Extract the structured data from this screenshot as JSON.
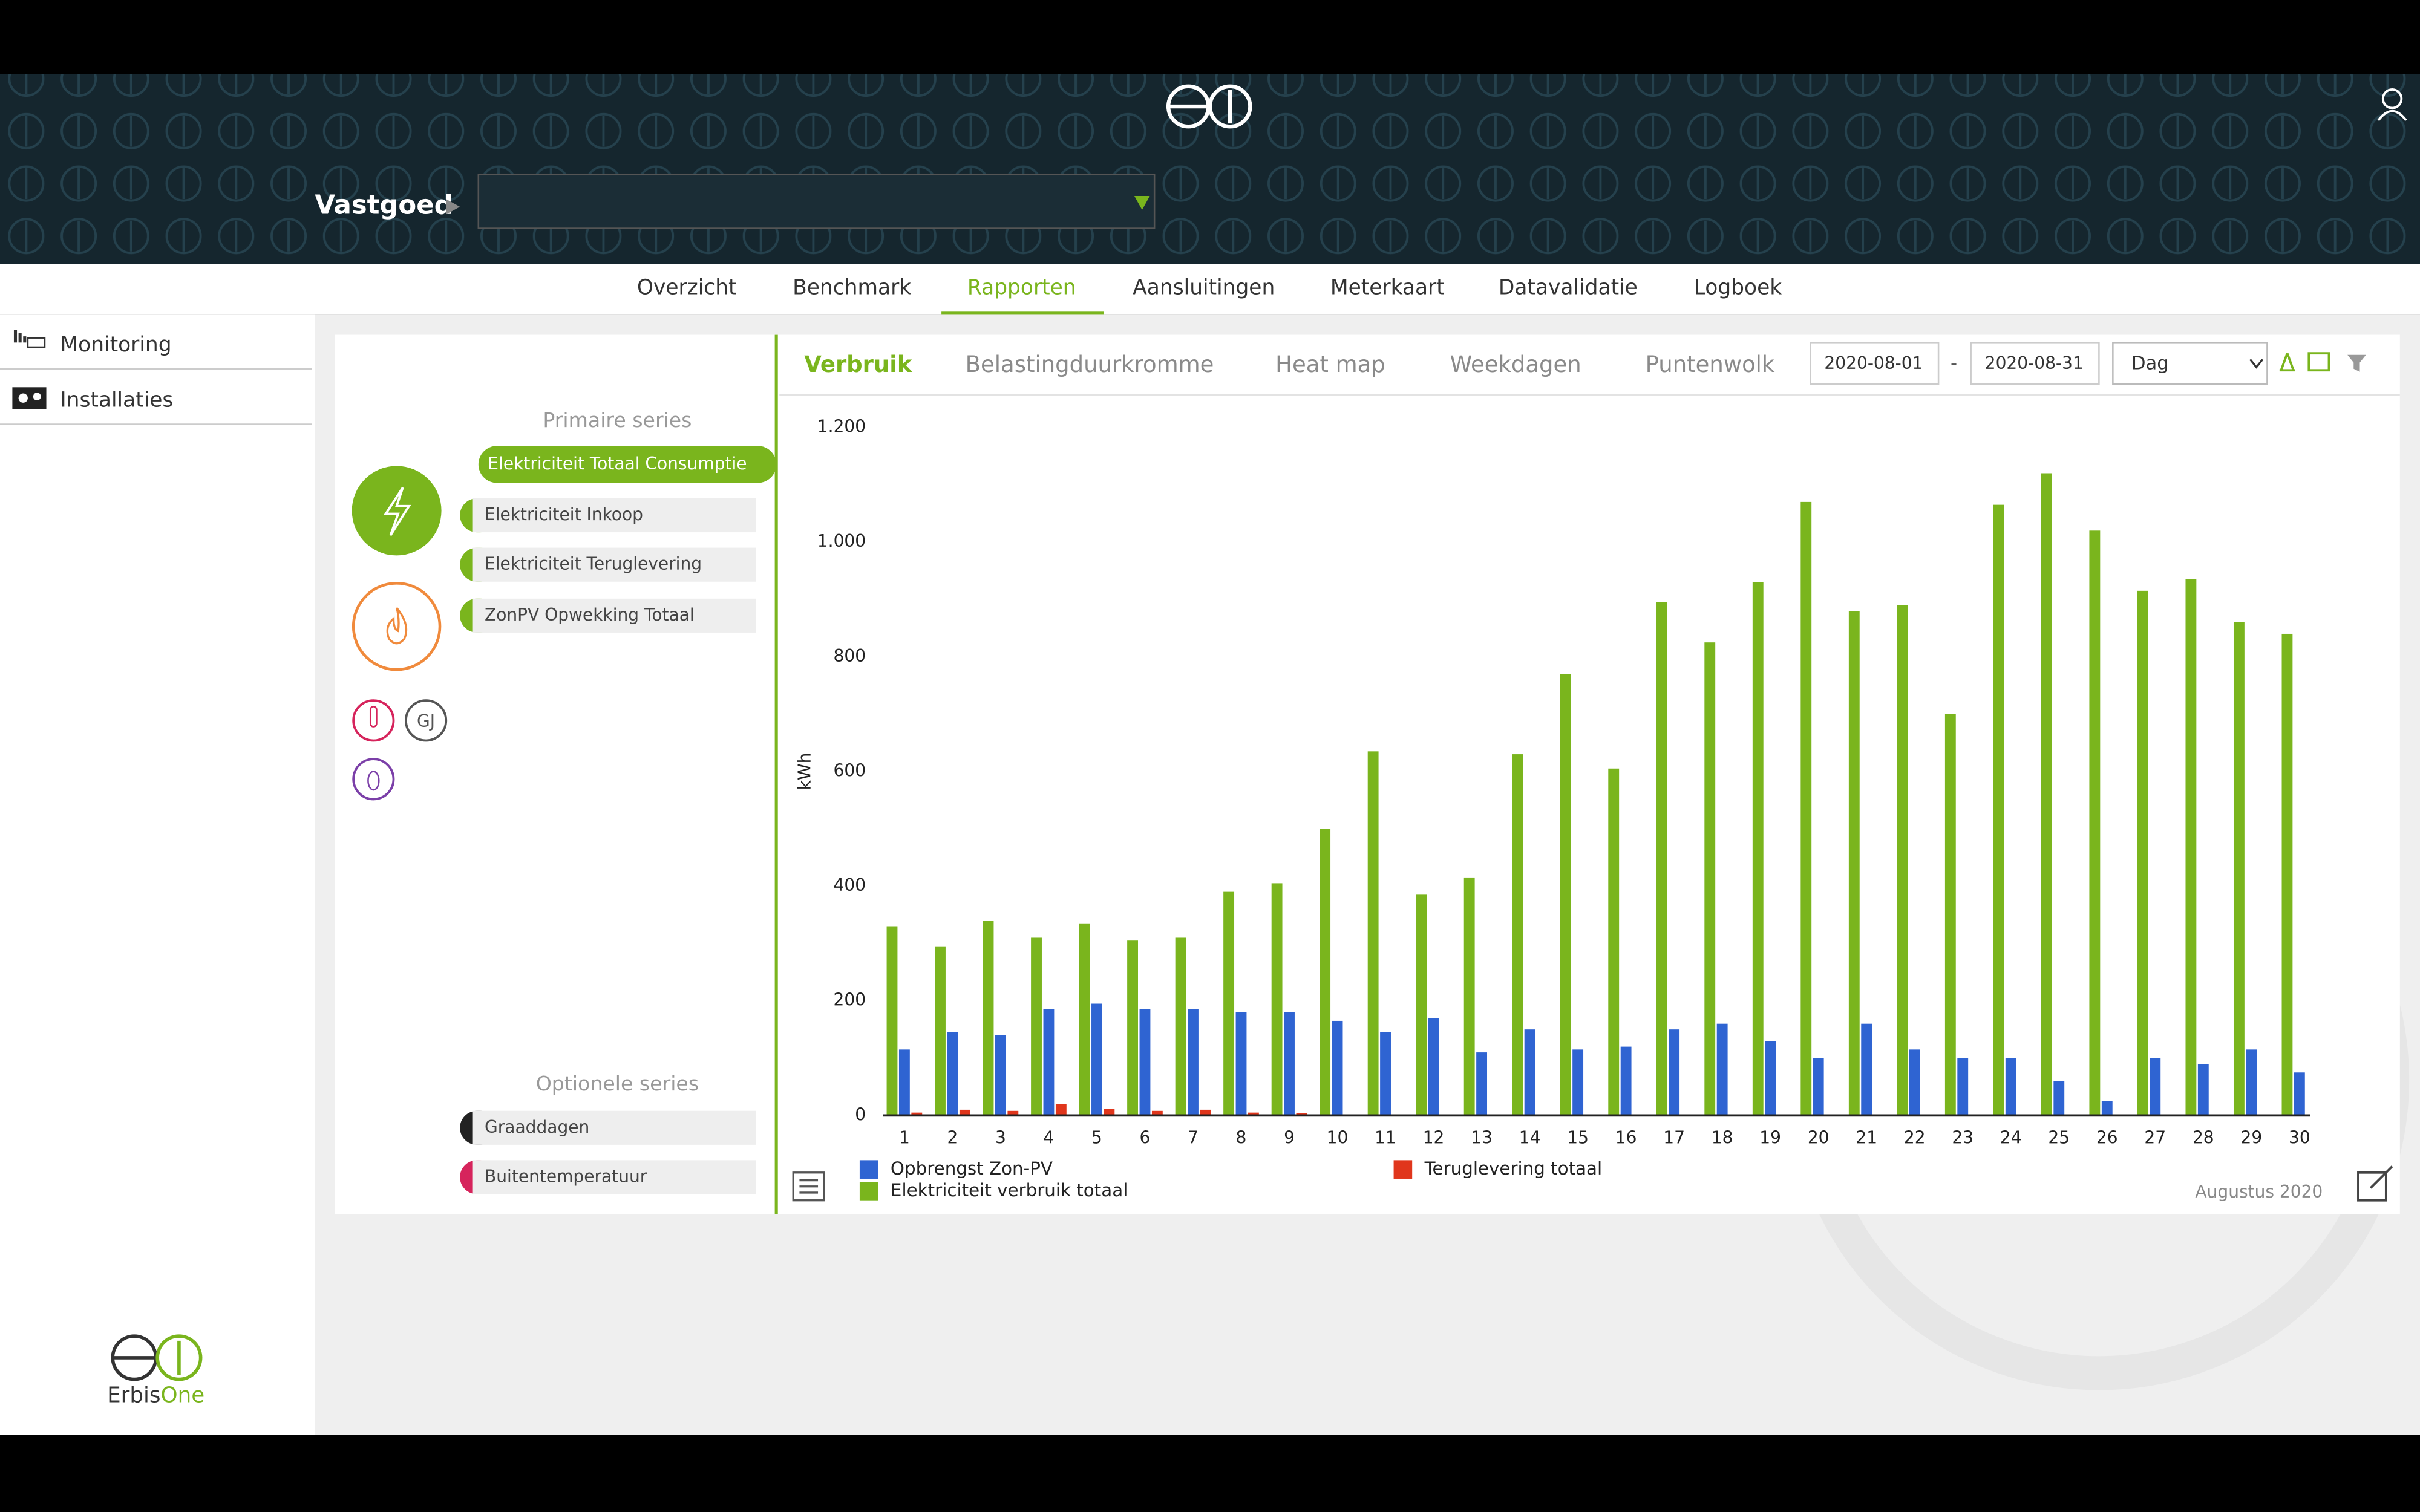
{
  "header": {
    "section": "Vastgoed"
  },
  "nav": [
    "Overzicht",
    "Benchmark",
    "Rapporten",
    "Aansluitingen",
    "Meterkaart",
    "Datavalidatie",
    "Logboek"
  ],
  "sidebar": [
    "Monitoring",
    "Installaties"
  ],
  "chart_tabs": [
    "Verbruik",
    "Belastingduurkromme",
    "Heat map",
    "Weekdagen",
    "Puntenwolk"
  ],
  "date_from": "2020-08-01",
  "separator": "-",
  "date_to": "2020-08-31",
  "interval": "Dag",
  "primary_heading": "Primaire series",
  "primary_series": [
    "Elektriciteit Totaal Consumptie",
    "Elektriciteit Inkoop",
    "Elektriciteit Teruglevering",
    "ZonPV Opwekking Totaal"
  ],
  "optional_heading": "Optionele series",
  "optional_series": [
    "Graaddagen",
    "Buitentemperatuur"
  ],
  "unit_badge": "GJ",
  "brand": {
    "part1": "Erbis",
    "part2": "One"
  },
  "chart_data": {
    "type": "bar",
    "ylabel": "kWh",
    "period_label": "Augustus 2020",
    "categories": [
      "1",
      "2",
      "3",
      "4",
      "5",
      "6",
      "7",
      "8",
      "9",
      "10",
      "11",
      "12",
      "13",
      "14",
      "15",
      "16",
      "17",
      "18",
      "19",
      "20",
      "21",
      "22",
      "23",
      "24",
      "25",
      "26",
      "27",
      "28",
      "29",
      "30"
    ],
    "series": [
      {
        "name": "Elektriciteit verbruik totaal",
        "color": "#7ab51d",
        "values": [
          330,
          295,
          340,
          310,
          335,
          305,
          310,
          390,
          405,
          500,
          635,
          385,
          415,
          630,
          770,
          605,
          895,
          825,
          930,
          1070,
          880,
          890,
          700,
          1065,
          1120,
          1020,
          915,
          935,
          860,
          840
        ]
      },
      {
        "name": "Opbrengst Zon-PV",
        "color": "#2f64d2",
        "values": [
          115,
          145,
          140,
          185,
          195,
          185,
          185,
          180,
          180,
          165,
          145,
          170,
          110,
          150,
          115,
          120,
          150,
          160,
          130,
          100,
          160,
          115,
          100,
          100,
          60,
          25,
          100,
          90,
          115,
          75
        ]
      },
      {
        "name": "Teruglevering totaal",
        "color": "#e0361c",
        "values": [
          5,
          10,
          8,
          20,
          12,
          8,
          10,
          5,
          4,
          0,
          0,
          0,
          0,
          0,
          0,
          0,
          0,
          0,
          0,
          0,
          0,
          0,
          0,
          0,
          0,
          0,
          0,
          0,
          0,
          0
        ]
      }
    ],
    "ylim": [
      0,
      1200
    ],
    "yticks": [
      0,
      200,
      400,
      600,
      800,
      {
        "value": 1000,
        "label": "1.000"
      },
      {
        "value": 1200,
        "label": "1.200"
      }
    ]
  }
}
